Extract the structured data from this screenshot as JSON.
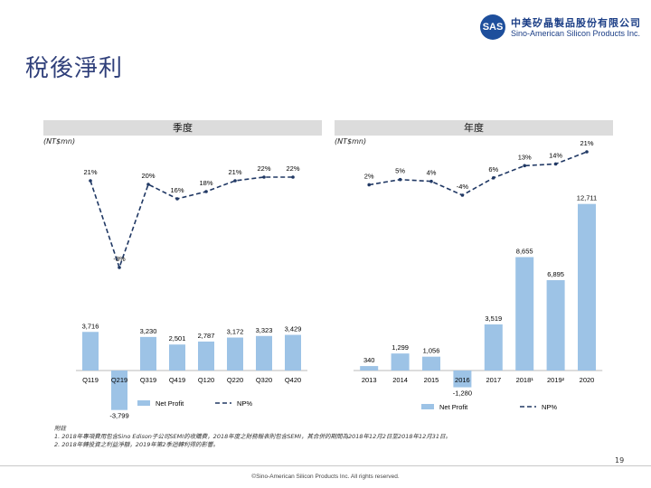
{
  "page_title": "稅後淨利",
  "logo": {
    "mark": "SAS",
    "name_cn": "中美矽晶製品股份有限公司",
    "name_en": "Sino-American Silicon Products Inc."
  },
  "colors": {
    "bar": "#9dc3e6",
    "line": "#203864",
    "header_bg": "#dcdcdc",
    "title": "#2f3f7a",
    "logo": "#1e4f9c"
  },
  "chart_data": [
    {
      "type": "bar",
      "panel": "quarterly",
      "title": "季度",
      "ylabel": "(NT$mn)",
      "categories": [
        "Q119",
        "Q219",
        "Q319",
        "Q419",
        "Q120",
        "Q220",
        "Q320",
        "Q420"
      ],
      "series": [
        {
          "name": "Net Profit",
          "kind": "bar",
          "values": [
            3716,
            -3799,
            3230,
            2501,
            2787,
            3172,
            3323,
            3429
          ],
          "labels": [
            "3,716",
            "-3,799",
            "3,230",
            "2,501",
            "2,787",
            "3,172",
            "3,323",
            "3,429"
          ]
        },
        {
          "name": "NP%",
          "kind": "line",
          "values": [
            21,
            -3,
            20,
            16,
            18,
            21,
            22,
            22
          ],
          "labels": [
            "21%",
            "-3%",
            "20%",
            "16%",
            "18%",
            "21%",
            "22%",
            "22%"
          ]
        }
      ]
    },
    {
      "type": "bar",
      "panel": "annual",
      "title": "年度",
      "ylabel": "(NT$mn)",
      "categories": [
        "2013",
        "2014",
        "2015",
        "2016",
        "2017",
        "2018¹",
        "2019²",
        "2020"
      ],
      "series": [
        {
          "name": "Net Profit",
          "kind": "bar",
          "values": [
            340,
            1299,
            1056,
            -1280,
            3519,
            8655,
            6895,
            12711
          ],
          "labels": [
            "340",
            "1,299",
            "1,056",
            "-1,280",
            "3,519",
            "8,655",
            "6,895",
            "12,711"
          ]
        },
        {
          "name": "NP%",
          "kind": "line",
          "values": [
            2,
            5,
            4,
            -4,
            6,
            13,
            14,
            21
          ],
          "labels": [
            "2%",
            "5%",
            "4%",
            "-4%",
            "6%",
            "13%",
            "14%",
            "21%"
          ]
        }
      ]
    }
  ],
  "notes": {
    "heading": "附註",
    "line1": "1. 2018年專項費用包含Sino Edison子公司SEMI的收購費，2018年度之財務報表則包含SEMI，其合併的期間為2018年12月2日至2018年12月31日。",
    "line2": "2. 2018年轉投資之利益淨額，2019年第2季迴轉利得的影響。"
  },
  "page_number": "19",
  "copyright": "©Sino-American Silicon Products Inc. All rights reserved."
}
